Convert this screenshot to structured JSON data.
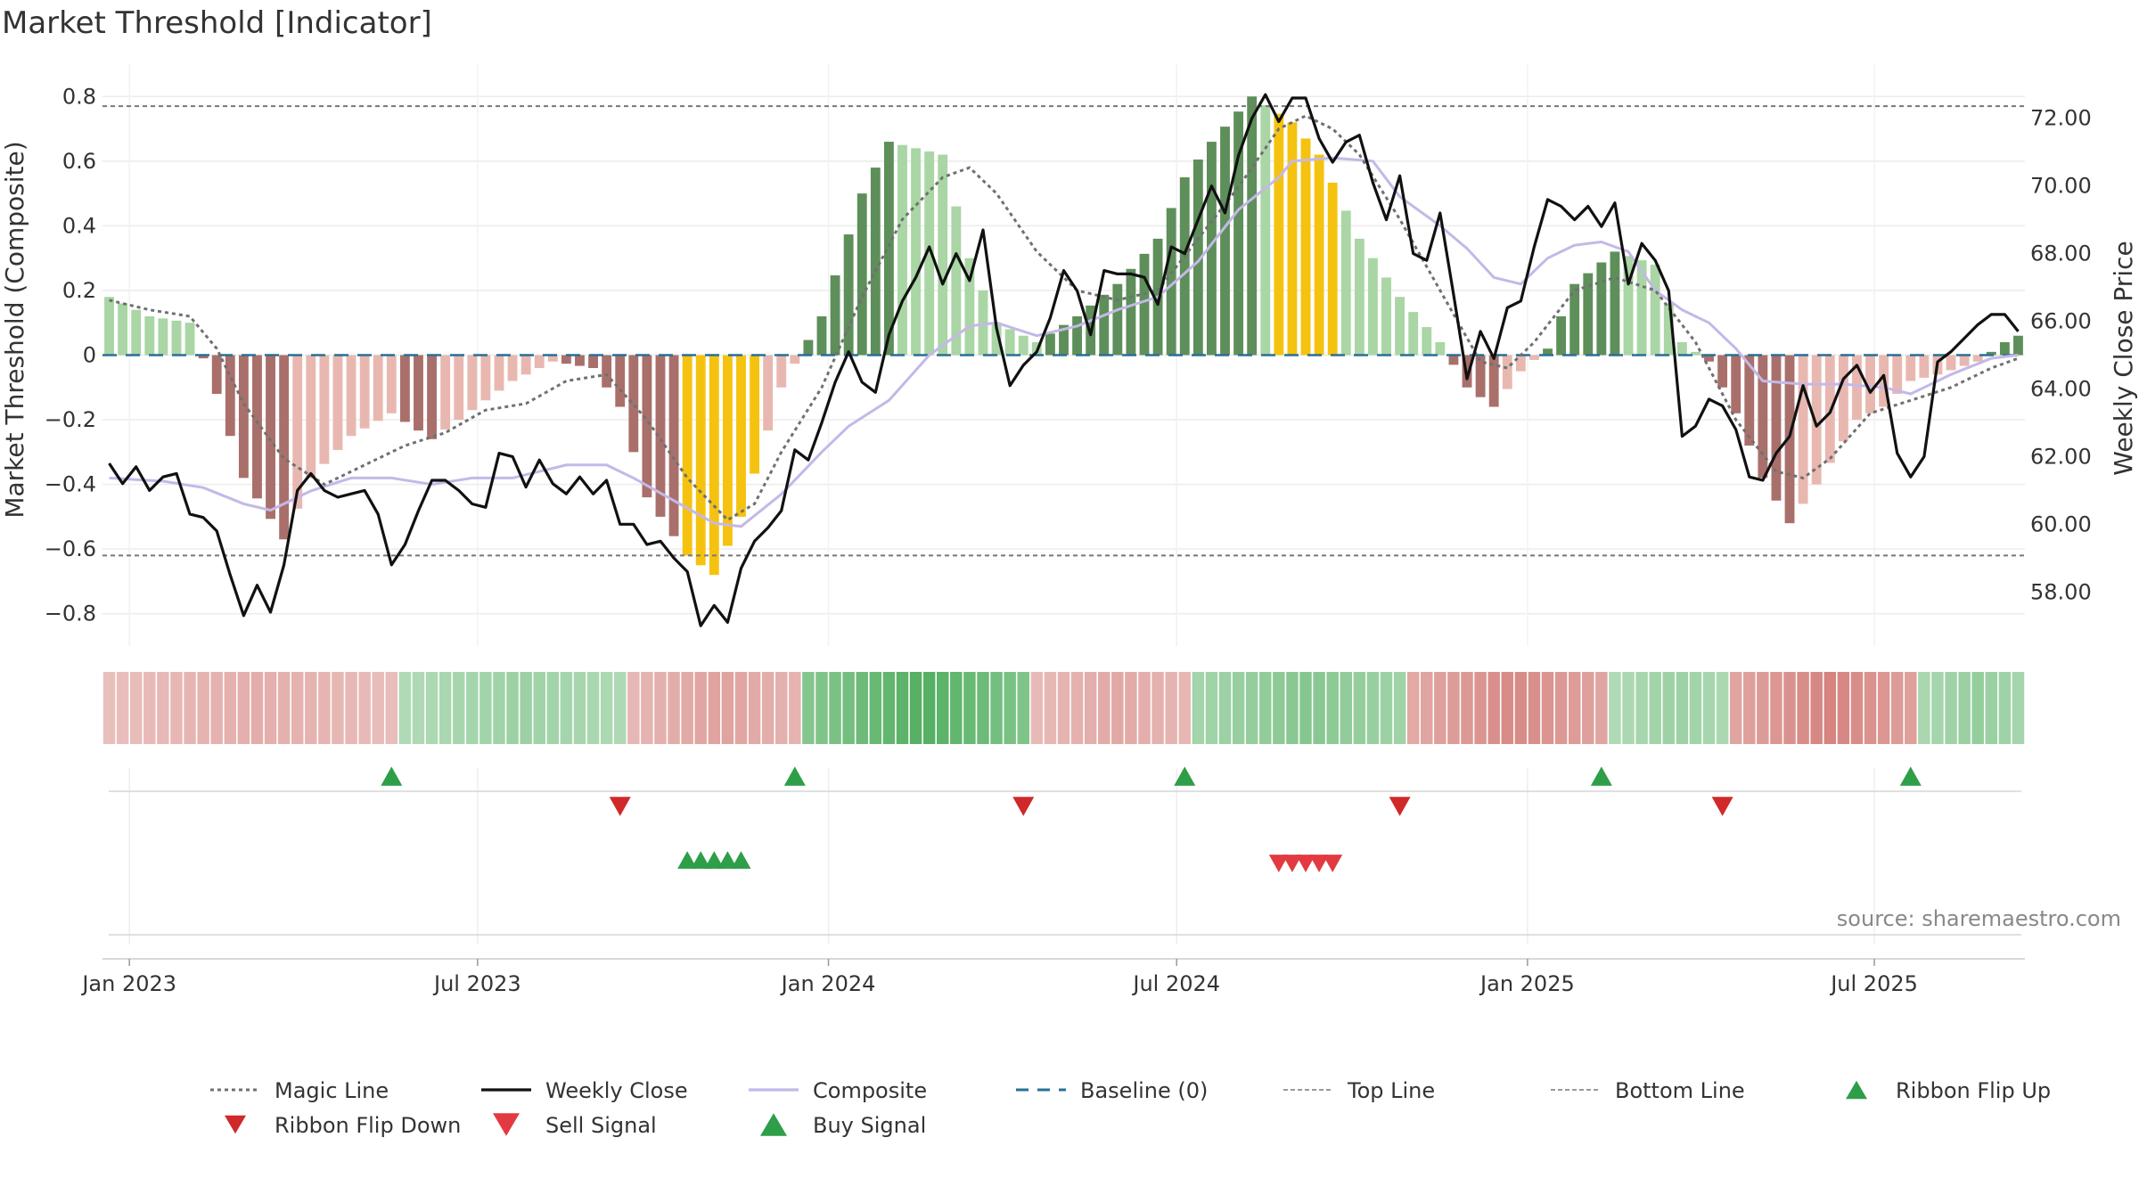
{
  "title": "Market Threshold [Indicator]",
  "source": "source: sharemaestro.com",
  "colors": {
    "magic_line": "#707070",
    "weekly_close": "#111111",
    "composite": "#c4b8e8",
    "baseline": "#2a6f97",
    "threshold_line": "#888888",
    "bar_pos_strong": "#5e8f5a",
    "bar_pos_weak": "#a9d6a4",
    "bar_neg_strong": "#a9706b",
    "bar_neg_weak": "#e8b8b0",
    "bar_extreme": "#f5c30f",
    "flip_up": "#2e9e48",
    "flip_down": "#d02929",
    "sell": "#e23a40",
    "buy": "#2e9e48",
    "ribbon_green": "#3ea54d",
    "ribbon_red": "#c9605a"
  },
  "chart_data": {
    "type": "bar+line",
    "title": "Market Threshold [Indicator]",
    "xlabel": "",
    "ylabel_left": "Market Threshold (Composite)",
    "ylabel_right": "Weekly Close Price",
    "ylim_left": [
      -0.9,
      0.9
    ],
    "ylim_right": [
      56.4,
      73.6
    ],
    "yticks_left": [
      0.8,
      0.6,
      0.4,
      0.2,
      0,
      -0.2,
      -0.4,
      -0.6,
      -0.8
    ],
    "yticks_left_labels": [
      "0.8",
      "0.6",
      "0.4",
      "0.2",
      "0",
      "−0.2",
      "−0.4",
      "−0.6",
      "−0.8"
    ],
    "yticks_right": [
      72,
      70,
      68,
      66,
      64,
      62,
      60,
      58
    ],
    "yticks_right_labels": [
      "72.00",
      "70.00",
      "68.00",
      "66.00",
      "64.00",
      "62.00",
      "60.00",
      "58.00"
    ],
    "x_start": "2022-12-26",
    "week_count": 143,
    "x_tick_labels": [
      "Jan 2023",
      "Jul 2023",
      "Jan 2024",
      "Jul 2024",
      "Jan 2025",
      "Jul 2025"
    ],
    "x_tick_weeks": [
      1.5,
      27.4,
      53.5,
      79.4,
      105.5,
      131.3
    ],
    "top_line": 0.77,
    "bottom_line": -0.62,
    "baseline": 0,
    "bar_anchors": [
      [
        0,
        0.18
      ],
      [
        3,
        0.12
      ],
      [
        6,
        0.1
      ],
      [
        8,
        -0.12
      ],
      [
        10,
        -0.38
      ],
      [
        13,
        -0.57
      ],
      [
        15,
        -0.38
      ],
      [
        18,
        -0.25
      ],
      [
        21,
        -0.18
      ],
      [
        24,
        -0.26
      ],
      [
        27,
        -0.17
      ],
      [
        30,
        -0.08
      ],
      [
        33,
        -0.02
      ],
      [
        36,
        -0.04
      ],
      [
        38,
        -0.16
      ],
      [
        40,
        -0.44
      ],
      [
        43,
        -0.62
      ],
      [
        45,
        -0.68
      ],
      [
        47,
        -0.5
      ],
      [
        50,
        -0.1
      ],
      [
        53,
        0.12
      ],
      [
        56,
        0.5
      ],
      [
        58,
        0.66
      ],
      [
        62,
        0.62
      ],
      [
        64,
        0.3
      ],
      [
        66,
        0.1
      ],
      [
        69,
        0.04
      ],
      [
        72,
        0.12
      ],
      [
        75,
        0.22
      ],
      [
        78,
        0.36
      ],
      [
        80,
        0.55
      ],
      [
        82,
        0.66
      ],
      [
        85,
        0.8
      ],
      [
        88,
        0.72
      ],
      [
        90,
        0.62
      ],
      [
        93,
        0.36
      ],
      [
        96,
        0.18
      ],
      [
        99,
        0.04
      ],
      [
        101,
        -0.1
      ],
      [
        103,
        -0.16
      ],
      [
        105,
        -0.05
      ],
      [
        107,
        0.02
      ],
      [
        109,
        0.22
      ],
      [
        112,
        0.32
      ],
      [
        115,
        0.28
      ],
      [
        117,
        0.04
      ],
      [
        119,
        -0.02
      ],
      [
        121,
        -0.18
      ],
      [
        123,
        -0.38
      ],
      [
        125,
        -0.52
      ],
      [
        127,
        -0.4
      ],
      [
        130,
        -0.2
      ],
      [
        132,
        -0.16
      ],
      [
        134,
        -0.08
      ],
      [
        136,
        -0.06
      ],
      [
        139,
        -0.02
      ],
      [
        141,
        0.04
      ],
      [
        142,
        0.06
      ]
    ],
    "bar_extreme_ranges": [
      [
        43,
        48
      ],
      [
        87,
        91
      ]
    ],
    "bar_strong_threshold": 0.52,
    "close_anchors": [
      [
        0,
        61.8
      ],
      [
        1,
        61.2
      ],
      [
        2,
        61.7
      ],
      [
        3,
        61.0
      ],
      [
        4,
        61.4
      ],
      [
        5,
        61.5
      ],
      [
        6,
        60.3
      ],
      [
        7,
        60.2
      ],
      [
        8,
        59.8
      ],
      [
        9,
        58.5
      ],
      [
        10,
        57.3
      ],
      [
        11,
        58.2
      ],
      [
        12,
        57.4
      ],
      [
        13,
        58.8
      ],
      [
        14,
        61.0
      ],
      [
        15,
        61.5
      ],
      [
        16,
        61.0
      ],
      [
        17,
        60.8
      ],
      [
        18,
        60.9
      ],
      [
        19,
        61.0
      ],
      [
        20,
        60.3
      ],
      [
        21,
        58.8
      ],
      [
        22,
        59.4
      ],
      [
        23,
        60.4
      ],
      [
        24,
        61.3
      ],
      [
        25,
        61.3
      ],
      [
        26,
        61.0
      ],
      [
        27,
        60.6
      ],
      [
        28,
        60.5
      ],
      [
        29,
        62.1
      ],
      [
        30,
        62.0
      ],
      [
        31,
        61.1
      ],
      [
        32,
        61.9
      ],
      [
        33,
        61.2
      ],
      [
        34,
        60.9
      ],
      [
        35,
        61.4
      ],
      [
        36,
        60.9
      ],
      [
        37,
        61.3
      ],
      [
        38,
        60.0
      ],
      [
        39,
        60.0
      ],
      [
        40,
        59.4
      ],
      [
        41,
        59.5
      ],
      [
        42,
        59.0
      ],
      [
        43,
        58.6
      ],
      [
        44,
        57.0
      ],
      [
        45,
        57.6
      ],
      [
        46,
        57.1
      ],
      [
        47,
        58.7
      ],
      [
        48,
        59.5
      ],
      [
        49,
        59.9
      ],
      [
        50,
        60.4
      ],
      [
        51,
        62.2
      ],
      [
        52,
        61.9
      ],
      [
        53,
        63.0
      ],
      [
        54,
        64.2
      ],
      [
        55,
        65.1
      ],
      [
        56,
        64.2
      ],
      [
        57,
        63.9
      ],
      [
        58,
        65.6
      ],
      [
        59,
        66.6
      ],
      [
        60,
        67.3
      ],
      [
        61,
        68.2
      ],
      [
        62,
        67.1
      ],
      [
        63,
        68.0
      ],
      [
        64,
        67.2
      ],
      [
        65,
        68.7
      ],
      [
        66,
        65.8
      ],
      [
        67,
        64.1
      ],
      [
        68,
        64.7
      ],
      [
        69,
        65.1
      ],
      [
        70,
        66.1
      ],
      [
        71,
        67.5
      ],
      [
        72,
        66.9
      ],
      [
        73,
        65.6
      ],
      [
        74,
        67.5
      ],
      [
        75,
        67.4
      ],
      [
        76,
        67.4
      ],
      [
        77,
        67.3
      ],
      [
        78,
        66.5
      ],
      [
        79,
        68.2
      ],
      [
        80,
        68.0
      ],
      [
        81,
        69.0
      ],
      [
        82,
        70.0
      ],
      [
        83,
        69.2
      ],
      [
        84,
        70.9
      ],
      [
        85,
        72.0
      ],
      [
        86,
        72.7
      ],
      [
        87,
        71.9
      ],
      [
        88,
        72.6
      ],
      [
        89,
        72.6
      ],
      [
        90,
        71.4
      ],
      [
        91,
        70.7
      ],
      [
        92,
        71.3
      ],
      [
        93,
        71.5
      ],
      [
        94,
        70.1
      ],
      [
        95,
        69.0
      ],
      [
        96,
        70.3
      ],
      [
        97,
        68.0
      ],
      [
        98,
        67.8
      ],
      [
        99,
        69.2
      ],
      [
        100,
        66.8
      ],
      [
        101,
        64.3
      ],
      [
        102,
        65.7
      ],
      [
        103,
        64.9
      ],
      [
        104,
        66.4
      ],
      [
        105,
        66.6
      ],
      [
        106,
        68.2
      ],
      [
        107,
        69.6
      ],
      [
        108,
        69.4
      ],
      [
        109,
        69.0
      ],
      [
        110,
        69.4
      ],
      [
        111,
        68.8
      ],
      [
        112,
        69.5
      ],
      [
        113,
        67.1
      ],
      [
        114,
        68.3
      ],
      [
        115,
        67.8
      ],
      [
        116,
        66.9
      ],
      [
        117,
        62.6
      ],
      [
        118,
        62.9
      ],
      [
        119,
        63.7
      ],
      [
        120,
        63.5
      ],
      [
        121,
        62.8
      ],
      [
        122,
        61.4
      ],
      [
        123,
        61.3
      ],
      [
        124,
        62.1
      ],
      [
        125,
        62.6
      ],
      [
        126,
        64.1
      ],
      [
        127,
        62.9
      ],
      [
        128,
        63.3
      ],
      [
        129,
        64.3
      ],
      [
        130,
        64.7
      ],
      [
        131,
        63.9
      ],
      [
        132,
        64.4
      ],
      [
        133,
        62.1
      ],
      [
        134,
        61.4
      ],
      [
        135,
        62.0
      ],
      [
        136,
        64.8
      ],
      [
        137,
        65.1
      ],
      [
        138,
        65.5
      ],
      [
        139,
        65.9
      ],
      [
        140,
        66.2
      ],
      [
        141,
        66.2
      ],
      [
        142,
        65.7
      ]
    ],
    "magic_anchors": [
      [
        0,
        0.17
      ],
      [
        3,
        0.14
      ],
      [
        6,
        0.12
      ],
      [
        8,
        0.02
      ],
      [
        10,
        -0.15
      ],
      [
        13,
        -0.32
      ],
      [
        16,
        -0.4
      ],
      [
        19,
        -0.34
      ],
      [
        22,
        -0.28
      ],
      [
        25,
        -0.24
      ],
      [
        28,
        -0.17
      ],
      [
        31,
        -0.15
      ],
      [
        34,
        -0.08
      ],
      [
        37,
        -0.06
      ],
      [
        40,
        -0.2
      ],
      [
        43,
        -0.38
      ],
      [
        46,
        -0.51
      ],
      [
        48,
        -0.46
      ],
      [
        50,
        -0.3
      ],
      [
        53,
        -0.1
      ],
      [
        56,
        0.18
      ],
      [
        59,
        0.42
      ],
      [
        62,
        0.55
      ],
      [
        64,
        0.58
      ],
      [
        66,
        0.5
      ],
      [
        69,
        0.32
      ],
      [
        72,
        0.2
      ],
      [
        75,
        0.17
      ],
      [
        78,
        0.2
      ],
      [
        81,
        0.36
      ],
      [
        84,
        0.52
      ],
      [
        87,
        0.7
      ],
      [
        89,
        0.74
      ],
      [
        91,
        0.7
      ],
      [
        93,
        0.62
      ],
      [
        96,
        0.42
      ],
      [
        99,
        0.2
      ],
      [
        102,
        -0.02
      ],
      [
        104,
        -0.04
      ],
      [
        106,
        0.04
      ],
      [
        109,
        0.2
      ],
      [
        112,
        0.24
      ],
      [
        115,
        0.2
      ],
      [
        118,
        0.04
      ],
      [
        121,
        -0.2
      ],
      [
        124,
        -0.36
      ],
      [
        126,
        -0.38
      ],
      [
        128,
        -0.32
      ],
      [
        131,
        -0.18
      ],
      [
        134,
        -0.14
      ],
      [
        137,
        -0.1
      ],
      [
        140,
        -0.04
      ],
      [
        142,
        -0.01
      ]
    ],
    "composite_anchors": [
      [
        0,
        -0.38
      ],
      [
        4,
        -0.39
      ],
      [
        7,
        -0.41
      ],
      [
        10,
        -0.46
      ],
      [
        12,
        -0.48
      ],
      [
        15,
        -0.42
      ],
      [
        18,
        -0.38
      ],
      [
        21,
        -0.38
      ],
      [
        24,
        -0.4
      ],
      [
        27,
        -0.38
      ],
      [
        30,
        -0.38
      ],
      [
        34,
        -0.34
      ],
      [
        37,
        -0.34
      ],
      [
        39,
        -0.38
      ],
      [
        42,
        -0.45
      ],
      [
        45,
        -0.52
      ],
      [
        47,
        -0.53
      ],
      [
        50,
        -0.43
      ],
      [
        53,
        -0.3
      ],
      [
        55,
        -0.22
      ],
      [
        58,
        -0.14
      ],
      [
        61,
        0.0
      ],
      [
        64,
        0.09
      ],
      [
        66,
        0.1
      ],
      [
        69,
        0.06
      ],
      [
        72,
        0.09
      ],
      [
        75,
        0.14
      ],
      [
        78,
        0.18
      ],
      [
        81,
        0.29
      ],
      [
        84,
        0.45
      ],
      [
        87,
        0.55
      ],
      [
        88,
        0.6
      ],
      [
        91,
        0.61
      ],
      [
        94,
        0.6
      ],
      [
        96,
        0.49
      ],
      [
        99,
        0.4
      ],
      [
        101,
        0.33
      ],
      [
        103,
        0.24
      ],
      [
        105,
        0.22
      ],
      [
        107,
        0.3
      ],
      [
        109,
        0.34
      ],
      [
        111,
        0.35
      ],
      [
        113,
        0.32
      ],
      [
        115,
        0.2
      ],
      [
        117,
        0.14
      ],
      [
        119,
        0.1
      ],
      [
        121,
        0.02
      ],
      [
        123,
        -0.08
      ],
      [
        126,
        -0.09
      ],
      [
        129,
        -0.09
      ],
      [
        132,
        -0.1
      ],
      [
        134,
        -0.12
      ],
      [
        137,
        -0.06
      ],
      [
        140,
        -0.01
      ],
      [
        142,
        0.0
      ]
    ],
    "ribbon_segments": [
      [
        0,
        22,
        -0.35
      ],
      [
        22,
        39,
        0.35
      ],
      [
        39,
        52,
        -0.45
      ],
      [
        52,
        69,
        0.85
      ],
      [
        69,
        81,
        -0.4
      ],
      [
        81,
        97,
        0.5
      ],
      [
        97,
        112,
        -0.65
      ],
      [
        112,
        121,
        0.35
      ],
      [
        121,
        135,
        -0.7
      ],
      [
        135,
        143,
        0.4
      ]
    ],
    "signals": {
      "ribbon_flip_up_weeks": [
        21,
        51,
        80,
        111,
        134
      ],
      "ribbon_flip_down_weeks": [
        38,
        68,
        96,
        120
      ],
      "buy_weeks": [
        43,
        44,
        45,
        46,
        47
      ],
      "sell_weeks": [
        87,
        88,
        89,
        90,
        91
      ]
    },
    "legend": [
      {
        "label": "Magic Line",
        "style": "dotted-line",
        "color": "#707070"
      },
      {
        "label": "Weekly Close",
        "style": "solid-line",
        "color": "#111111"
      },
      {
        "label": "Composite",
        "style": "solid-line",
        "color": "#c4b8e8"
      },
      {
        "label": "Baseline (0)",
        "style": "dashed-line",
        "color": "#2a6f97"
      },
      {
        "label": "Top Line",
        "style": "fine-dashed-line",
        "color": "#999999"
      },
      {
        "label": "Bottom Line",
        "style": "fine-dashed-line",
        "color": "#999999"
      },
      {
        "label": "Ribbon Flip Up",
        "style": "triangle-up",
        "color": "#2e9e48"
      },
      {
        "label": "Ribbon Flip Down",
        "style": "triangle-down",
        "color": "#d02929"
      },
      {
        "label": "Sell Signal",
        "style": "triangle-down-large",
        "color": "#e23a40"
      },
      {
        "label": "Buy Signal",
        "style": "triangle-up-large",
        "color": "#2e9e48"
      }
    ]
  }
}
